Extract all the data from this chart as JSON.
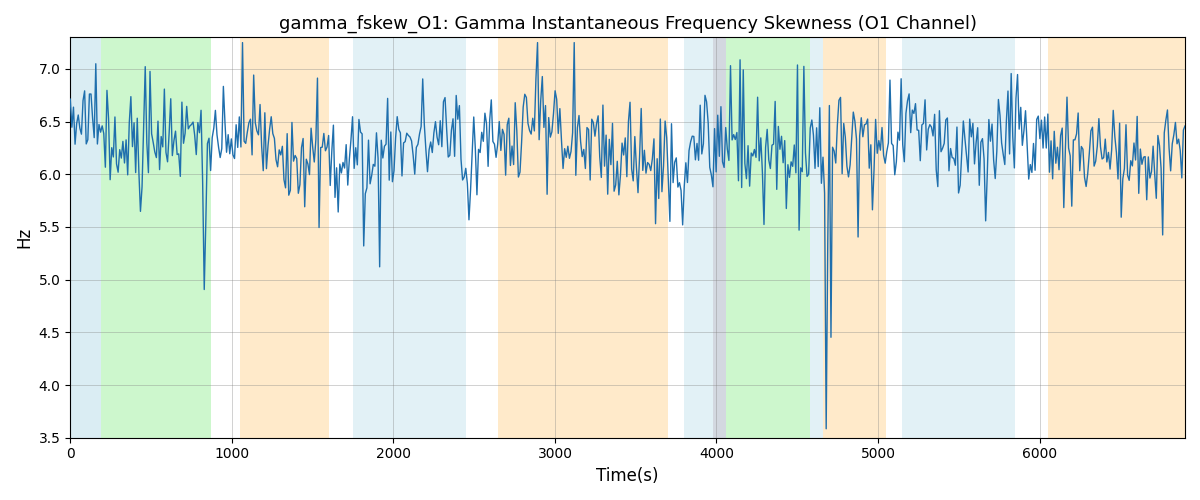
{
  "title": "gamma_fskew_O1: Gamma Instantaneous Frequency Skewness (O1 Channel)",
  "xlabel": "Time(s)",
  "ylabel": "Hz",
  "ylim": [
    3.5,
    7.3
  ],
  "xlim": [
    0,
    6900
  ],
  "line_color": "#1f6fad",
  "line_width": 1.0,
  "background_regions": [
    {
      "start": 0,
      "end": 190,
      "color": "#add8e6",
      "alpha": 0.45
    },
    {
      "start": 190,
      "end": 870,
      "color": "#90ee90",
      "alpha": 0.45
    },
    {
      "start": 870,
      "end": 1050,
      "color": "#ffffff",
      "alpha": 0.0
    },
    {
      "start": 1050,
      "end": 1600,
      "color": "#ffd9a0",
      "alpha": 0.55
    },
    {
      "start": 1600,
      "end": 1750,
      "color": "#ffffff",
      "alpha": 0.0
    },
    {
      "start": 1750,
      "end": 2450,
      "color": "#add8e6",
      "alpha": 0.35
    },
    {
      "start": 2450,
      "end": 2650,
      "color": "#ffffff",
      "alpha": 0.0
    },
    {
      "start": 2650,
      "end": 3700,
      "color": "#ffd9a0",
      "alpha": 0.55
    },
    {
      "start": 3700,
      "end": 3800,
      "color": "#ffffff",
      "alpha": 0.0
    },
    {
      "start": 3800,
      "end": 3980,
      "color": "#add8e6",
      "alpha": 0.35
    },
    {
      "start": 3980,
      "end": 4060,
      "color": "#b0b8c8",
      "alpha": 0.55
    },
    {
      "start": 4060,
      "end": 4580,
      "color": "#90ee90",
      "alpha": 0.45
    },
    {
      "start": 4580,
      "end": 4660,
      "color": "#add8e6",
      "alpha": 0.35
    },
    {
      "start": 4660,
      "end": 5050,
      "color": "#ffd9a0",
      "alpha": 0.55
    },
    {
      "start": 5050,
      "end": 5150,
      "color": "#ffffff",
      "alpha": 0.0
    },
    {
      "start": 5150,
      "end": 5850,
      "color": "#add8e6",
      "alpha": 0.35
    },
    {
      "start": 5850,
      "end": 6050,
      "color": "#ffffff",
      "alpha": 0.0
    },
    {
      "start": 6050,
      "end": 6900,
      "color": "#ffd9a0",
      "alpha": 0.55
    }
  ],
  "xticks": [
    0,
    1000,
    2000,
    3000,
    4000,
    5000,
    6000
  ],
  "yticks": [
    3.5,
    4.0,
    4.5,
    5.0,
    5.5,
    6.0,
    6.5,
    7.0
  ],
  "title_fontsize": 13,
  "axis_fontsize": 12,
  "n_points": 700,
  "x_start": 0,
  "x_end": 6900,
  "base_mean": 6.3
}
